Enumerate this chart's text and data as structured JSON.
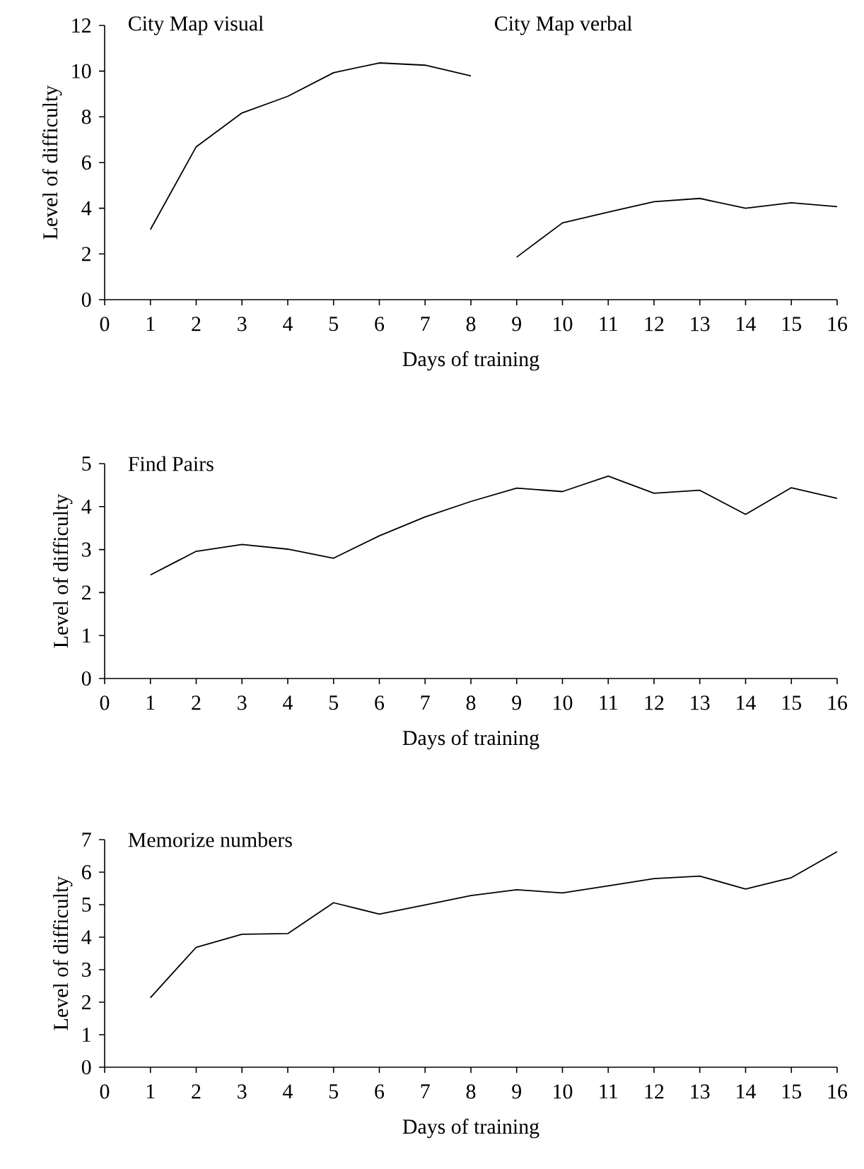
{
  "chart_data": [
    {
      "type": "line",
      "xlabel": "Days of training",
      "ylabel": "Level of difficulty",
      "xlim": [
        0,
        16
      ],
      "xticks": [
        0,
        1,
        2,
        3,
        4,
        5,
        6,
        7,
        8,
        9,
        10,
        11,
        12,
        13,
        14,
        15,
        16
      ],
      "ylim": [
        0,
        12
      ],
      "yticks": [
        0,
        2,
        4,
        6,
        8,
        10,
        12
      ],
      "annotations": [
        "City Map visual",
        "City Map verbal"
      ],
      "series": [
        {
          "color": "#000000",
          "x": [
            1,
            2,
            3,
            4,
            5,
            6,
            7,
            8
          ],
          "values": [
            3.07,
            6.69,
            8.17,
            8.9,
            9.93,
            10.36,
            10.26,
            9.79
          ]
        },
        {
          "color": "#000000",
          "x": [
            9,
            10,
            11,
            12,
            13,
            14,
            15,
            16
          ],
          "values": [
            1.86,
            3.36,
            3.83,
            4.29,
            4.43,
            4.0,
            4.24,
            4.07
          ]
        }
      ]
    },
    {
      "type": "line",
      "title": "Find Pairs",
      "xlabel": "Days of training",
      "ylabel": "Level of difficulty",
      "xlim": [
        0,
        16
      ],
      "xticks": [
        0,
        1,
        2,
        3,
        4,
        5,
        6,
        7,
        8,
        9,
        10,
        11,
        12,
        13,
        14,
        15,
        16
      ],
      "ylim": [
        0,
        5
      ],
      "yticks": [
        0,
        1,
        2,
        3,
        4,
        5
      ],
      "x": [
        1,
        2,
        3,
        4,
        5,
        6,
        7,
        8,
        9,
        10,
        11,
        12,
        13,
        14,
        15,
        16
      ],
      "series": [
        {
          "color": "#000000",
          "values": [
            2.41,
            2.96,
            3.12,
            3.01,
            2.8,
            3.32,
            3.76,
            4.12,
            4.43,
            4.35,
            4.71,
            4.31,
            4.38,
            3.82,
            4.44,
            4.19
          ]
        }
      ]
    },
    {
      "type": "line",
      "title": "Memorize numbers",
      "xlabel": "Days of training",
      "ylabel": "Level of difficulty",
      "xlim": [
        0,
        16
      ],
      "xticks": [
        0,
        1,
        2,
        3,
        4,
        5,
        6,
        7,
        8,
        9,
        10,
        11,
        12,
        13,
        14,
        15,
        16
      ],
      "ylim": [
        0,
        7
      ],
      "yticks": [
        0,
        1,
        2,
        3,
        4,
        5,
        6,
        7
      ],
      "x": [
        1,
        2,
        3,
        4,
        5,
        6,
        7,
        8,
        9,
        10,
        11,
        12,
        13,
        14,
        15,
        16
      ],
      "series": [
        {
          "color": "#000000",
          "values": [
            2.14,
            3.69,
            4.09,
            4.11,
            5.06,
            4.71,
            4.99,
            5.28,
            5.46,
            5.36,
            5.58,
            5.8,
            5.88,
            5.48,
            5.83,
            6.63
          ]
        }
      ]
    }
  ]
}
